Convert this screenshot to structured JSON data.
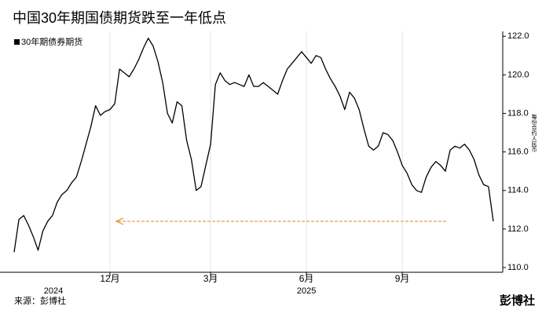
{
  "chart_data": {
    "type": "line",
    "title": "中国30年期国债期货跌至一年低点",
    "y_axis_label": "每份合约人民币",
    "source": "来源：彭博社",
    "logo": "彭博社",
    "years": [
      "2024",
      "2025"
    ],
    "categories": [
      null,
      null,
      null,
      null,
      null,
      null,
      null,
      null,
      null,
      null,
      null,
      null,
      null,
      null,
      null,
      null,
      null,
      null,
      null,
      null,
      "12月",
      null,
      null,
      null,
      null,
      null,
      null,
      null,
      null,
      null,
      null,
      null,
      null,
      null,
      null,
      null,
      null,
      null,
      null,
      null,
      null,
      "3月",
      null,
      null,
      null,
      null,
      null,
      null,
      null,
      null,
      null,
      null,
      null,
      null,
      null,
      null,
      null,
      null,
      null,
      null,
      null,
      "6月",
      null,
      null,
      null,
      null,
      null,
      null,
      null,
      null,
      null,
      null,
      null,
      null,
      null,
      null,
      null,
      null,
      null,
      null,
      null,
      "9月",
      null,
      null,
      null,
      null,
      null,
      null,
      null,
      null,
      null,
      null,
      null,
      null,
      null,
      null,
      null,
      null,
      null,
      null,
      null
    ],
    "series": [
      {
        "name": "30年期债券期货",
        "color": "#000000",
        "values": [
          110.8,
          112.5,
          112.7,
          112.2,
          111.6,
          110.9,
          111.9,
          112.4,
          112.7,
          113.4,
          113.8,
          114.0,
          114.4,
          114.7,
          115.5,
          116.4,
          117.3,
          118.4,
          117.9,
          118.1,
          118.2,
          118.5,
          120.3,
          120.1,
          119.9,
          120.3,
          120.8,
          121.4,
          121.9,
          121.5,
          120.7,
          119.6,
          118.0,
          117.5,
          118.6,
          118.4,
          116.6,
          115.6,
          114.0,
          114.2,
          115.3,
          116.4,
          119.5,
          120.1,
          119.7,
          119.5,
          119.6,
          119.5,
          119.4,
          120.0,
          119.4,
          119.4,
          119.6,
          119.4,
          119.2,
          119.0,
          119.7,
          120.3,
          120.6,
          120.9,
          121.2,
          120.9,
          120.6,
          121.0,
          120.9,
          120.3,
          119.8,
          119.4,
          118.9,
          118.2,
          119.1,
          118.8,
          118.2,
          117.2,
          116.3,
          116.1,
          116.3,
          117.0,
          116.9,
          116.6,
          116.0,
          115.3,
          114.9,
          114.3,
          114.0,
          113.9,
          114.7,
          115.2,
          115.5,
          115.3,
          115.0,
          116.1,
          116.3,
          116.2,
          116.4,
          116.1,
          115.6,
          114.8,
          114.3,
          114.2,
          112.4
        ]
      }
    ],
    "arrow": {
      "value": 112.4,
      "color": "#e8903c"
    },
    "ylim": [
      110,
      122.5
    ],
    "yticks": [
      {
        "value": 110,
        "label": "110.0"
      },
      {
        "value": 112,
        "label": "112.0"
      },
      {
        "value": 114,
        "label": "114.0"
      },
      {
        "value": 116,
        "label": "116.0"
      },
      {
        "value": 118,
        "label": "118.0"
      },
      {
        "value": 120,
        "label": "120.0"
      },
      {
        "value": 122,
        "label": "122.0"
      }
    ],
    "grid": true
  }
}
